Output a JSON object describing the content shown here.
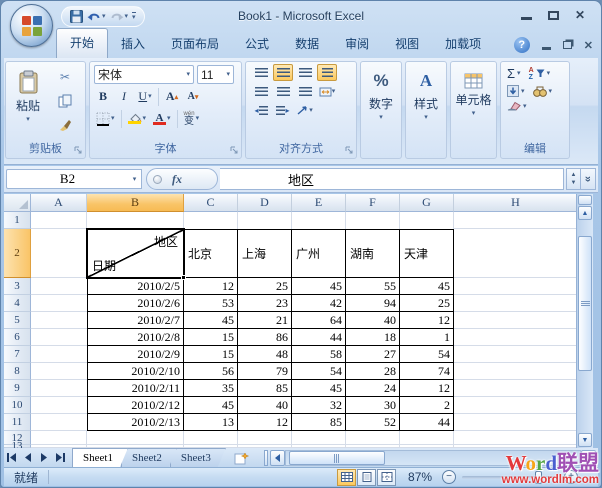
{
  "window": {
    "title": "Book1 - Microsoft Excel"
  },
  "ribbon": {
    "tabs": [
      {
        "label": "开始",
        "active": true
      },
      {
        "label": "插入",
        "active": false
      },
      {
        "label": "页面布局",
        "active": false
      },
      {
        "label": "公式",
        "active": false
      },
      {
        "label": "数据",
        "active": false
      },
      {
        "label": "审阅",
        "active": false
      },
      {
        "label": "视图",
        "active": false
      },
      {
        "label": "加载项",
        "active": false
      }
    ],
    "groups": {
      "clipboard": {
        "label": "剪贴板",
        "paste_label": "粘贴"
      },
      "font": {
        "label": "字体",
        "name_value": "宋体",
        "size_value": "11",
        "bold_label": "B",
        "italic_label": "I",
        "underline_label": "U",
        "grow_label": "A",
        "shrink_label": "A",
        "font_color_label": "A",
        "phonetic_label": "变",
        "phonetic_hint": "wén"
      },
      "alignment": {
        "label": "对齐方式"
      },
      "number": {
        "label": "数字",
        "percent_label": "%"
      },
      "styles": {
        "label": "样式",
        "icon_label": "A"
      },
      "cells": {
        "label": "单元格"
      },
      "editing": {
        "label": "编辑",
        "sum_label": "Σ",
        "sort_a": "A",
        "sort_z": "Z"
      }
    }
  },
  "formula_bar": {
    "name_box": "B2",
    "fx_label": "fx",
    "value": "地区"
  },
  "grid": {
    "columns": [
      "A",
      "B",
      "C",
      "D",
      "E",
      "F",
      "G",
      "H"
    ],
    "selected_column": "B",
    "rows": [
      "1",
      "2",
      "3",
      "4",
      "5",
      "6",
      "7",
      "8",
      "9",
      "10",
      "11",
      "12",
      "13"
    ],
    "selected_row": "2",
    "selected_cell": "B2"
  },
  "table": {
    "diagonal_header": {
      "top": "地区",
      "bottom": "日期"
    },
    "city_headers": [
      "北京",
      "上海",
      "广州",
      "湖南",
      "天津"
    ],
    "data_rows": [
      {
        "date": "2010/2/5",
        "values": [
          12,
          25,
          45,
          55,
          45
        ]
      },
      {
        "date": "2010/2/6",
        "values": [
          53,
          23,
          42,
          94,
          25
        ]
      },
      {
        "date": "2010/2/7",
        "values": [
          45,
          21,
          64,
          40,
          12
        ]
      },
      {
        "date": "2010/2/8",
        "values": [
          15,
          86,
          44,
          18,
          1
        ]
      },
      {
        "date": "2010/2/9",
        "values": [
          15,
          48,
          58,
          27,
          54
        ]
      },
      {
        "date": "2010/2/10",
        "values": [
          56,
          79,
          54,
          28,
          74
        ]
      },
      {
        "date": "2010/2/11",
        "values": [
          35,
          85,
          45,
          24,
          12
        ]
      },
      {
        "date": "2010/2/12",
        "values": [
          45,
          40,
          32,
          30,
          2
        ]
      },
      {
        "date": "2010/2/13",
        "values": [
          13,
          12,
          85,
          52,
          44
        ]
      }
    ]
  },
  "sheet_tabs": {
    "tabs": [
      {
        "label": "Sheet1",
        "active": true
      },
      {
        "label": "Sheet2",
        "active": false
      },
      {
        "label": "Sheet3",
        "active": false
      }
    ]
  },
  "status_bar": {
    "ready": "就绪",
    "zoom": "87%"
  },
  "watermark": {
    "brand_letters": [
      {
        "text": "W",
        "color": "#e3393c"
      },
      {
        "text": "o",
        "color": "#f6a519"
      },
      {
        "text": "r",
        "color": "#55a546"
      },
      {
        "text": "d",
        "color": "#4a5fd0"
      },
      {
        "text": "联盟",
        "color": "#a050b4"
      }
    ],
    "url": "www.wordlm.com",
    "url_color": "#e23a3c"
  },
  "colors": {
    "selection_highlight": "#f9c467",
    "table_border": "#000000",
    "gridline": "#d5dce8",
    "ribbon_blue": "#d4e2f4"
  }
}
